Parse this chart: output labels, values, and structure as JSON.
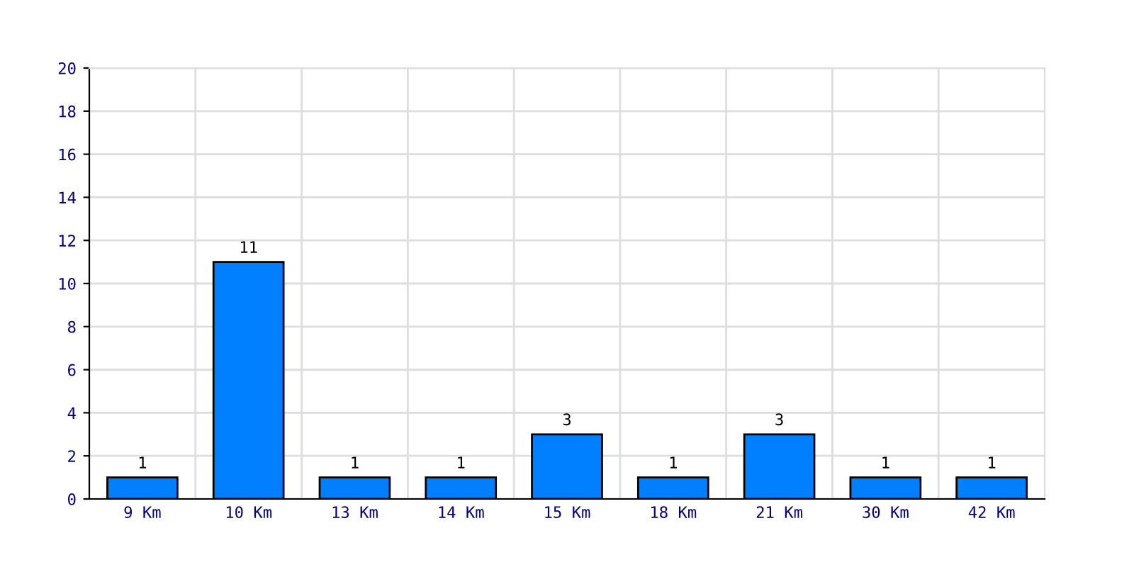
{
  "chart_data": {
    "type": "bar",
    "categories": [
      "9 Km",
      "10 Km",
      "13 Km",
      "14 Km",
      "15 Km",
      "18 Km",
      "21 Km",
      "30 Km",
      "42 Km"
    ],
    "values": [
      1,
      11,
      1,
      1,
      3,
      1,
      3,
      1,
      1
    ],
    "color": "#0080ff",
    "ylim": [
      0,
      20
    ],
    "yticks": [
      0,
      2,
      4,
      6,
      8,
      10,
      12,
      14,
      16,
      18,
      20
    ],
    "grid": true,
    "data_labels": true
  }
}
